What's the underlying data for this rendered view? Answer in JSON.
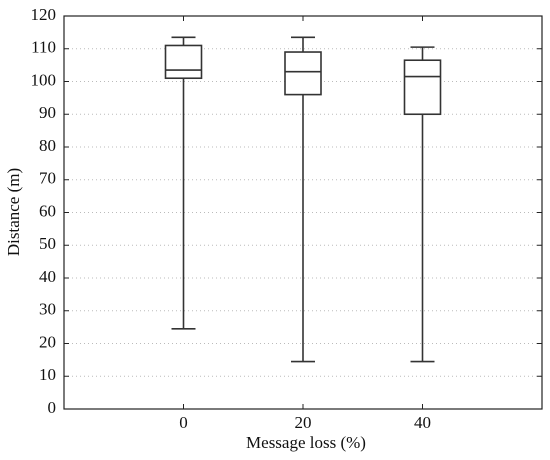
{
  "chart_data": {
    "type": "box",
    "xlabel": "Message loss (%)",
    "ylabel": "Distance (m)",
    "x": [
      0,
      20,
      40
    ],
    "min": [
      24.5,
      14.5,
      14.5
    ],
    "q1": [
      101,
      96,
      90
    ],
    "median": [
      103.5,
      103,
      101.5
    ],
    "q3": [
      111,
      109,
      106.5
    ],
    "max": [
      113.5,
      113.5,
      110.5
    ],
    "xlim": [
      -20,
      60
    ],
    "xticks": [
      0,
      20,
      40
    ],
    "ylim": [
      0,
      120
    ],
    "yticks": [
      0,
      10,
      20,
      30,
      40,
      50,
      60,
      70,
      80,
      90,
      100,
      110,
      120
    ],
    "grid": true
  }
}
